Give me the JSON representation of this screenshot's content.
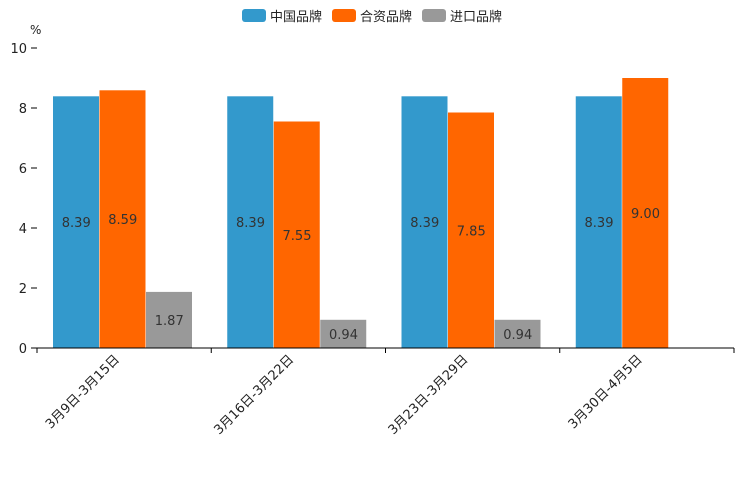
{
  "chart_data": {
    "type": "bar",
    "title": "",
    "xlabel": "",
    "ylabel": "%",
    "ylim": [
      0,
      10
    ],
    "yticks": [
      0,
      2,
      4,
      6,
      8,
      10
    ],
    "grid": false,
    "legend_position": "top-center",
    "categories": [
      "3月9日-3月15日",
      "3月16日-3月22日",
      "3月23日-3月29日",
      "3月30日-4月5日"
    ],
    "series": [
      {
        "name": "中国品牌",
        "color": "#3399cc",
        "values": [
          8.39,
          8.39,
          8.39,
          8.39
        ],
        "labels": [
          "8.39",
          "8.39",
          "8.39",
          "8.39"
        ]
      },
      {
        "name": "合资品牌",
        "color": "#ff6600",
        "values": [
          8.59,
          7.55,
          7.85,
          9.0
        ],
        "labels": [
          "8.59",
          "7.55",
          "7.85",
          "9.00"
        ]
      },
      {
        "name": "进口品牌",
        "color": "#999999",
        "values": [
          1.87,
          0.94,
          0.94,
          null
        ],
        "labels": [
          "1.87",
          "0.94",
          "0.94",
          null
        ]
      }
    ]
  }
}
